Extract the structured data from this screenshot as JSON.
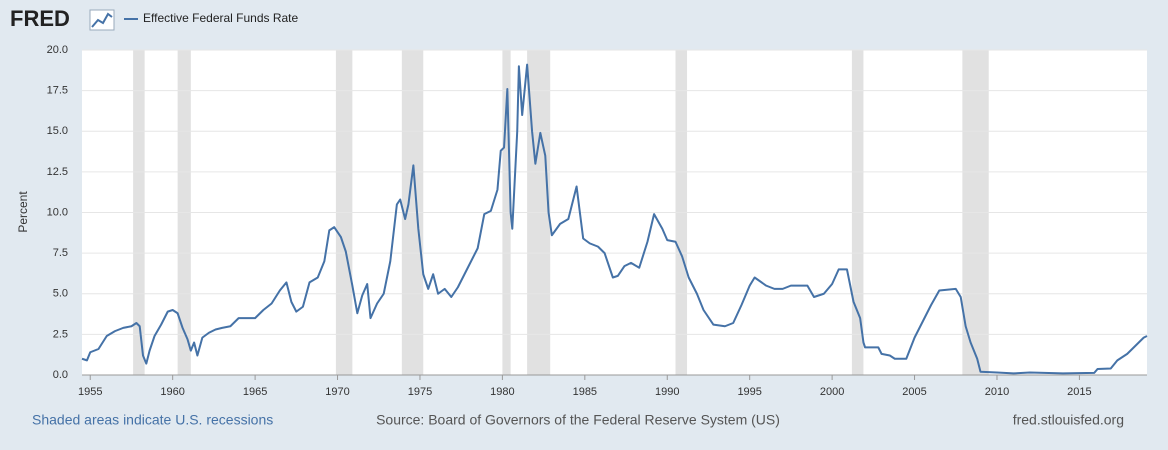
{
  "chart_data": {
    "type": "line",
    "logo": "FRED",
    "y_label": "Percent",
    "note": "Shaded areas indicate U.S. recessions",
    "source": "Source: Board of Governors of the Federal Reserve System (US)",
    "site": "fred.stlouisfed.org",
    "xlim": [
      1954.5,
      2019.1
    ],
    "ylim": [
      0,
      20
    ],
    "xticks": [
      1955,
      1960,
      1965,
      1970,
      1975,
      1980,
      1985,
      1990,
      1995,
      2000,
      2005,
      2010,
      2015
    ],
    "yticks": [
      {
        "value": 0,
        "label": "0.0"
      },
      2.5,
      {
        "value": 5,
        "label": "5.0"
      },
      7.5,
      {
        "value": 10,
        "label": "10.0"
      },
      12.5,
      {
        "value": 15,
        "label": "15.0"
      },
      17.5,
      {
        "value": 20,
        "label": "20.0"
      }
    ],
    "grid": true,
    "recessions": [
      [
        1957.6,
        1958.3
      ],
      [
        1960.3,
        1961.1
      ],
      [
        1969.9,
        1970.9
      ],
      [
        1973.9,
        1975.2
      ],
      [
        1980.0,
        1980.5
      ],
      [
        1981.5,
        1982.9
      ],
      [
        1990.5,
        1991.2
      ],
      [
        2001.2,
        2001.9
      ],
      [
        2007.9,
        2009.5
      ]
    ],
    "x": [
      1954.5,
      1954.8,
      1955.0,
      1955.5,
      1956.0,
      1956.5,
      1957.0,
      1957.5,
      1957.8,
      1958.0,
      1958.2,
      1958.4,
      1958.6,
      1958.9,
      1959.3,
      1959.7,
      1960.0,
      1960.3,
      1960.6,
      1960.9,
      1961.1,
      1961.3,
      1961.5,
      1961.8,
      1962.2,
      1962.6,
      1963.0,
      1963.5,
      1964.0,
      1964.5,
      1965.0,
      1965.5,
      1966.0,
      1966.5,
      1966.9,
      1967.2,
      1967.5,
      1967.9,
      1968.3,
      1968.8,
      1969.2,
      1969.5,
      1969.8,
      1970.2,
      1970.5,
      1970.9,
      1971.2,
      1971.5,
      1971.8,
      1972.0,
      1972.4,
      1972.8,
      1973.2,
      1973.6,
      1973.8,
      1974.1,
      1974.3,
      1974.6,
      1974.9,
      1975.2,
      1975.5,
      1975.8,
      1976.1,
      1976.5,
      1976.9,
      1977.3,
      1977.7,
      1978.0,
      1978.5,
      1978.9,
      1979.3,
      1979.7,
      1979.9,
      1980.1,
      1980.3,
      1980.5,
      1980.6,
      1980.9,
      1981.0,
      1981.2,
      1981.5,
      1981.8,
      1982.0,
      1982.3,
      1982.6,
      1982.8,
      1983.0,
      1983.5,
      1984.0,
      1984.5,
      1984.9,
      1985.3,
      1985.8,
      1986.2,
      1986.7,
      1987.0,
      1987.4,
      1987.8,
      1988.3,
      1988.8,
      1989.2,
      1989.7,
      1990.0,
      1990.5,
      1990.9,
      1991.3,
      1991.8,
      1992.2,
      1992.8,
      1993.5,
      1994.0,
      1994.5,
      1995.0,
      1995.3,
      1996.0,
      1996.5,
      1997.0,
      1997.5,
      1998.5,
      1998.9,
      1999.5,
      2000.0,
      2000.4,
      2000.9,
      2001.3,
      2001.7,
      2001.9,
      2002.0,
      2002.8,
      2003.0,
      2003.5,
      2003.8,
      2004.5,
      2005.0,
      2006.0,
      2006.5,
      2007.5,
      2007.8,
      2008.1,
      2008.4,
      2008.8,
      2009.0,
      2010.0,
      2011.0,
      2012.0,
      2014.0,
      2015.9,
      2016.1,
      2016.9,
      2017.3,
      2017.9,
      2018.3,
      2018.9,
      2019.1
    ],
    "series": [
      {
        "name": "Effective Federal Funds Rate",
        "color": "#4572a7",
        "values": [
          1.0,
          0.9,
          1.4,
          1.6,
          2.4,
          2.7,
          2.9,
          3.0,
          3.2,
          3.0,
          1.2,
          0.7,
          1.5,
          2.4,
          3.1,
          3.9,
          4.0,
          3.8,
          2.9,
          2.2,
          1.5,
          2.0,
          1.2,
          2.3,
          2.6,
          2.8,
          2.9,
          3.0,
          3.5,
          3.5,
          3.5,
          4.0,
          4.4,
          5.2,
          5.7,
          4.5,
          3.9,
          4.2,
          5.7,
          6.0,
          7.0,
          8.9,
          9.1,
          8.5,
          7.6,
          5.5,
          3.8,
          4.9,
          5.6,
          3.5,
          4.4,
          5.0,
          7.0,
          10.5,
          10.8,
          9.6,
          10.5,
          12.9,
          9.0,
          6.2,
          5.3,
          6.2,
          5.0,
          5.3,
          4.8,
          5.4,
          6.2,
          6.8,
          7.8,
          9.9,
          10.1,
          11.4,
          13.8,
          14.0,
          17.6,
          10.0,
          9.0,
          15.0,
          19.0,
          16.0,
          19.1,
          15.0,
          13.0,
          14.9,
          13.5,
          10.0,
          8.6,
          9.3,
          9.6,
          11.6,
          8.4,
          8.1,
          7.9,
          7.5,
          6.0,
          6.1,
          6.7,
          6.9,
          6.6,
          8.2,
          9.9,
          9.0,
          8.3,
          8.2,
          7.3,
          6.0,
          5.0,
          4.0,
          3.1,
          3.0,
          3.2,
          4.3,
          5.5,
          6.0,
          5.5,
          5.3,
          5.3,
          5.5,
          5.5,
          4.8,
          5.0,
          5.6,
          6.5,
          6.5,
          4.5,
          3.5,
          2.0,
          1.7,
          1.7,
          1.3,
          1.2,
          1.0,
          1.0,
          2.3,
          4.3,
          5.2,
          5.3,
          4.8,
          3.0,
          2.0,
          1.0,
          0.2,
          0.15,
          0.1,
          0.15,
          0.1,
          0.13,
          0.37,
          0.4,
          0.9,
          1.3,
          1.7,
          2.3,
          2.4
        ]
      }
    ]
  }
}
